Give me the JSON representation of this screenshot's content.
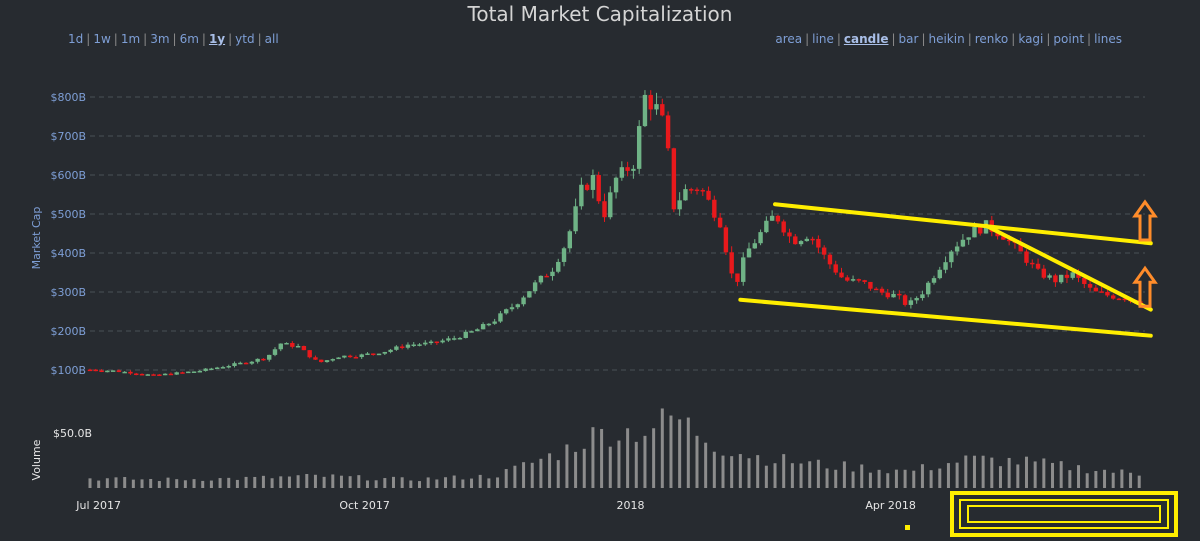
{
  "title": "Total Market Capitalization",
  "range_options": [
    "1d",
    "1w",
    "1m",
    "3m",
    "6m",
    "1y",
    "ytd",
    "all"
  ],
  "range_selected": "1y",
  "type_options": [
    "area",
    "line",
    "candle",
    "bar",
    "heikin",
    "renko",
    "kagi",
    "point",
    "lines"
  ],
  "type_selected": "candle",
  "colors": {
    "background": "#272b30",
    "up": "#6fb386",
    "down": "#e8191c",
    "volume": "#8c8c8c",
    "trendline": "#ffee00",
    "arrow": "#ff8c2a",
    "label": "#7e9fd6"
  },
  "chart_data": {
    "type": "candlestick",
    "ylabel": "Market Cap",
    "volume_label": "Volume",
    "y_ticks": [
      "$100B",
      "$200B",
      "$300B",
      "$400B",
      "$500B",
      "$600B",
      "$700B",
      "$800B"
    ],
    "y_tick_values": [
      100,
      200,
      300,
      400,
      500,
      600,
      700,
      800
    ],
    "ylim": [
      50,
      850
    ],
    "volume_tick": "$50.0B",
    "x_ticks": [
      "Jul 2017",
      "Oct 2017",
      "2018",
      "Apr 2018"
    ],
    "x_range": [
      "2017-06-28",
      "2018-06-28"
    ],
    "x_tick_dates": [
      "2017-07-01",
      "2017-10-01",
      "2018-01-01",
      "2018-04-01"
    ],
    "close_series": [
      [
        "2017-06-28",
        101
      ],
      [
        "2017-07-06",
        98
      ],
      [
        "2017-07-14",
        92
      ],
      [
        "2017-07-20",
        86
      ],
      [
        "2017-07-28",
        92
      ],
      [
        "2017-08-05",
        98
      ],
      [
        "2017-08-12",
        108
      ],
      [
        "2017-08-20",
        118
      ],
      [
        "2017-08-28",
        132
      ],
      [
        "2017-09-02",
        168
      ],
      [
        "2017-09-08",
        160
      ],
      [
        "2017-09-15",
        118
      ],
      [
        "2017-09-22",
        135
      ],
      [
        "2017-09-30",
        138
      ],
      [
        "2017-10-08",
        148
      ],
      [
        "2017-10-16",
        165
      ],
      [
        "2017-10-24",
        168
      ],
      [
        "2017-11-01",
        182
      ],
      [
        "2017-11-08",
        200
      ],
      [
        "2017-11-15",
        228
      ],
      [
        "2017-11-22",
        268
      ],
      [
        "2017-11-29",
        320
      ],
      [
        "2017-12-05",
        360
      ],
      [
        "2017-12-10",
        430
      ],
      [
        "2017-12-15",
        560
      ],
      [
        "2017-12-20",
        600
      ],
      [
        "2017-12-22",
        480
      ],
      [
        "2017-12-27",
        590
      ],
      [
        "2018-01-02",
        630
      ],
      [
        "2018-01-06",
        800
      ],
      [
        "2018-01-10",
        770
      ],
      [
        "2018-01-13",
        720
      ],
      [
        "2018-01-16",
        520
      ],
      [
        "2018-01-20",
        560
      ],
      [
        "2018-01-25",
        570
      ],
      [
        "2018-02-01",
        480
      ],
      [
        "2018-02-06",
        310
      ],
      [
        "2018-02-10",
        400
      ],
      [
        "2018-02-16",
        460
      ],
      [
        "2018-02-20",
        500
      ],
      [
        "2018-02-26",
        430
      ],
      [
        "2018-03-04",
        450
      ],
      [
        "2018-03-10",
        380
      ],
      [
        "2018-03-16",
        330
      ],
      [
        "2018-03-22",
        325
      ],
      [
        "2018-03-28",
        300
      ],
      [
        "2018-04-03",
        290
      ],
      [
        "2018-04-07",
        265
      ],
      [
        "2018-04-12",
        300
      ],
      [
        "2018-04-17",
        355
      ],
      [
        "2018-04-22",
        410
      ],
      [
        "2018-04-28",
        450
      ],
      [
        "2018-05-04",
        470
      ],
      [
        "2018-05-10",
        445
      ],
      [
        "2018-05-16",
        400
      ],
      [
        "2018-05-22",
        350
      ],
      [
        "2018-05-28",
        330
      ],
      [
        "2018-06-03",
        345
      ],
      [
        "2018-06-10",
        300
      ],
      [
        "2018-06-16",
        290
      ],
      [
        "2018-06-22",
        285
      ],
      [
        "2018-06-28",
        265
      ]
    ],
    "volume_series": [
      [
        "2017-06-28",
        8
      ],
      [
        "2017-07-20",
        7
      ],
      [
        "2017-08-20",
        8
      ],
      [
        "2017-09-15",
        10
      ],
      [
        "2017-10-16",
        7
      ],
      [
        "2017-11-15",
        10
      ],
      [
        "2017-12-08",
        30
      ],
      [
        "2017-12-20",
        45
      ],
      [
        "2018-01-06",
        48
      ],
      [
        "2018-01-16",
        60
      ],
      [
        "2018-02-01",
        34
      ],
      [
        "2018-02-16",
        25
      ],
      [
        "2018-03-10",
        19
      ],
      [
        "2018-04-07",
        14
      ],
      [
        "2018-04-28",
        24
      ],
      [
        "2018-05-16",
        22
      ],
      [
        "2018-06-28",
        11
      ]
    ],
    "annotations": [
      {
        "type": "trendline",
        "label": "channel-top",
        "from": [
          "2018-02-20",
          525
        ],
        "to": [
          "2018-06-30",
          425
        ]
      },
      {
        "type": "trendline",
        "label": "channel-bottom",
        "from": [
          "2018-02-08",
          280
        ],
        "to": [
          "2018-06-30",
          188
        ]
      },
      {
        "type": "trendline",
        "label": "wedge-top",
        "from": [
          "2018-05-04",
          470
        ],
        "to": [
          "2018-06-30",
          255
        ]
      },
      {
        "type": "arrow",
        "direction": "up",
        "at": [
          "2018-06-28",
          495
        ]
      },
      {
        "type": "arrow",
        "direction": "up",
        "at": [
          "2018-06-28",
          325
        ]
      }
    ]
  }
}
